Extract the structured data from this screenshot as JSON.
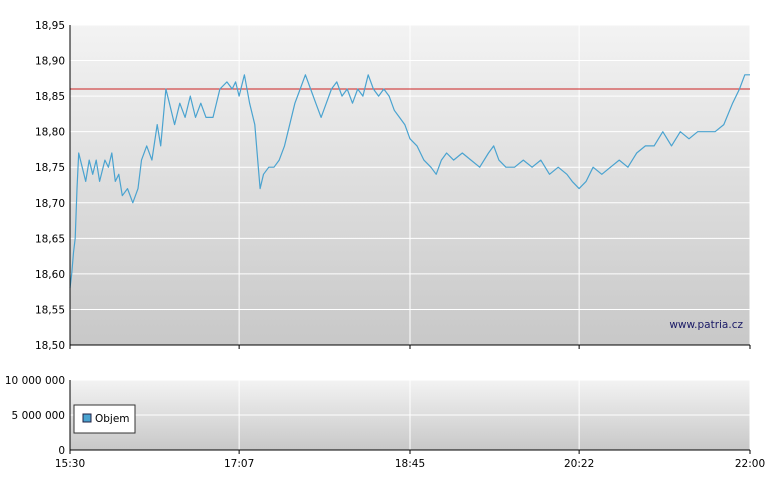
{
  "chart_data": [
    {
      "type": "line",
      "title": "",
      "xlabel": "",
      "ylabel": "",
      "x_ticks": [
        "15:30",
        "17:07",
        "18:45",
        "20:22",
        "22:00"
      ],
      "y_ticks": [
        "18,95",
        "18,90",
        "18,85",
        "18,80",
        "18,75",
        "18,70",
        "18,65",
        "18,60",
        "18,55",
        "18,50"
      ],
      "ylim": [
        18.5,
        18.95
      ],
      "xlim": [
        "15:30",
        "22:00"
      ],
      "reference_line": {
        "value": 18.86,
        "color": "#cc2222"
      },
      "watermark": "www.patria.cz",
      "grid": true,
      "series": [
        {
          "color": "#4aa3d0",
          "points": [
            [
              "15:30",
              18.58
            ],
            [
              "15:31",
              18.6
            ],
            [
              "15:32",
              18.63
            ],
            [
              "15:33",
              18.65
            ],
            [
              "15:34",
              18.72
            ],
            [
              "15:35",
              18.77
            ],
            [
              "15:37",
              18.75
            ],
            [
              "15:39",
              18.73
            ],
            [
              "15:41",
              18.76
            ],
            [
              "15:43",
              18.74
            ],
            [
              "15:45",
              18.76
            ],
            [
              "15:47",
              18.73
            ],
            [
              "15:50",
              18.76
            ],
            [
              "15:52",
              18.75
            ],
            [
              "15:54",
              18.77
            ],
            [
              "15:56",
              18.73
            ],
            [
              "15:58",
              18.74
            ],
            [
              "16:00",
              18.71
            ],
            [
              "16:03",
              18.72
            ],
            [
              "16:06",
              18.7
            ],
            [
              "16:09",
              18.72
            ],
            [
              "16:11",
              18.76
            ],
            [
              "16:14",
              18.78
            ],
            [
              "16:17",
              18.76
            ],
            [
              "16:20",
              18.81
            ],
            [
              "16:22",
              18.78
            ],
            [
              "16:25",
              18.86
            ],
            [
              "16:27",
              18.84
            ],
            [
              "16:30",
              18.81
            ],
            [
              "16:33",
              18.84
            ],
            [
              "16:36",
              18.82
            ],
            [
              "16:39",
              18.85
            ],
            [
              "16:42",
              18.82
            ],
            [
              "16:45",
              18.84
            ],
            [
              "16:48",
              18.82
            ],
            [
              "16:52",
              18.82
            ],
            [
              "16:56",
              18.86
            ],
            [
              "17:00",
              18.87
            ],
            [
              "17:03",
              18.86
            ],
            [
              "17:05",
              18.87
            ],
            [
              "17:07",
              18.85
            ],
            [
              "17:10",
              18.88
            ],
            [
              "17:13",
              18.84
            ],
            [
              "17:16",
              18.81
            ],
            [
              "17:18",
              18.75
            ],
            [
              "17:19",
              18.72
            ],
            [
              "17:21",
              18.74
            ],
            [
              "17:24",
              18.75
            ],
            [
              "17:27",
              18.75
            ],
            [
              "17:30",
              18.76
            ],
            [
              "17:33",
              18.78
            ],
            [
              "17:36",
              18.81
            ],
            [
              "17:39",
              18.84
            ],
            [
              "17:42",
              18.86
            ],
            [
              "17:45",
              18.88
            ],
            [
              "17:48",
              18.86
            ],
            [
              "17:51",
              18.84
            ],
            [
              "17:54",
              18.82
            ],
            [
              "17:57",
              18.84
            ],
            [
              "18:00",
              18.86
            ],
            [
              "18:03",
              18.87
            ],
            [
              "18:06",
              18.85
            ],
            [
              "18:09",
              18.86
            ],
            [
              "18:12",
              18.84
            ],
            [
              "18:15",
              18.86
            ],
            [
              "18:18",
              18.85
            ],
            [
              "18:21",
              18.88
            ],
            [
              "18:24",
              18.86
            ],
            [
              "18:27",
              18.85
            ],
            [
              "18:30",
              18.86
            ],
            [
              "18:33",
              18.85
            ],
            [
              "18:36",
              18.83
            ],
            [
              "18:39",
              18.82
            ],
            [
              "18:42",
              18.81
            ],
            [
              "18:45",
              18.79
            ],
            [
              "18:49",
              18.78
            ],
            [
              "18:53",
              18.76
            ],
            [
              "18:57",
              18.75
            ],
            [
              "19:00",
              18.74
            ],
            [
              "19:03",
              18.76
            ],
            [
              "19:06",
              18.77
            ],
            [
              "19:10",
              18.76
            ],
            [
              "19:15",
              18.77
            ],
            [
              "19:20",
              18.76
            ],
            [
              "19:25",
              18.75
            ],
            [
              "19:30",
              18.77
            ],
            [
              "19:33",
              18.78
            ],
            [
              "19:36",
              18.76
            ],
            [
              "19:40",
              18.75
            ],
            [
              "19:45",
              18.75
            ],
            [
              "19:50",
              18.76
            ],
            [
              "19:55",
              18.75
            ],
            [
              "20:00",
              18.76
            ],
            [
              "20:05",
              18.74
            ],
            [
              "20:10",
              18.75
            ],
            [
              "20:15",
              18.74
            ],
            [
              "20:18",
              18.73
            ],
            [
              "20:22",
              18.72
            ],
            [
              "20:26",
              18.73
            ],
            [
              "20:30",
              18.75
            ],
            [
              "20:35",
              18.74
            ],
            [
              "20:40",
              18.75
            ],
            [
              "20:45",
              18.76
            ],
            [
              "20:50",
              18.75
            ],
            [
              "20:55",
              18.77
            ],
            [
              "21:00",
              18.78
            ],
            [
              "21:05",
              18.78
            ],
            [
              "21:10",
              18.8
            ],
            [
              "21:15",
              18.78
            ],
            [
              "21:20",
              18.8
            ],
            [
              "21:25",
              18.79
            ],
            [
              "21:30",
              18.8
            ],
            [
              "21:35",
              18.8
            ],
            [
              "21:40",
              18.8
            ],
            [
              "21:45",
              18.81
            ],
            [
              "21:50",
              18.84
            ],
            [
              "21:54",
              18.86
            ],
            [
              "21:57",
              18.88
            ],
            [
              "22:00",
              18.88
            ]
          ]
        }
      ]
    },
    {
      "type": "bar",
      "title": "",
      "xlabel": "",
      "ylabel": "",
      "x_ticks": [
        "15:30",
        "17:07",
        "18:45",
        "20:22",
        "22:00"
      ],
      "y_ticks": [
        "10 000 000",
        "5 000 000",
        "0"
      ],
      "ylim": [
        0,
        10000000
      ],
      "grid": true,
      "legend": {
        "position": "bottom-left",
        "entries": [
          {
            "label": "Objem",
            "color": "#4aa3d0"
          }
        ]
      },
      "series": [
        {
          "name": "Objem",
          "color": "#4aa3d0",
          "values": []
        }
      ]
    }
  ]
}
